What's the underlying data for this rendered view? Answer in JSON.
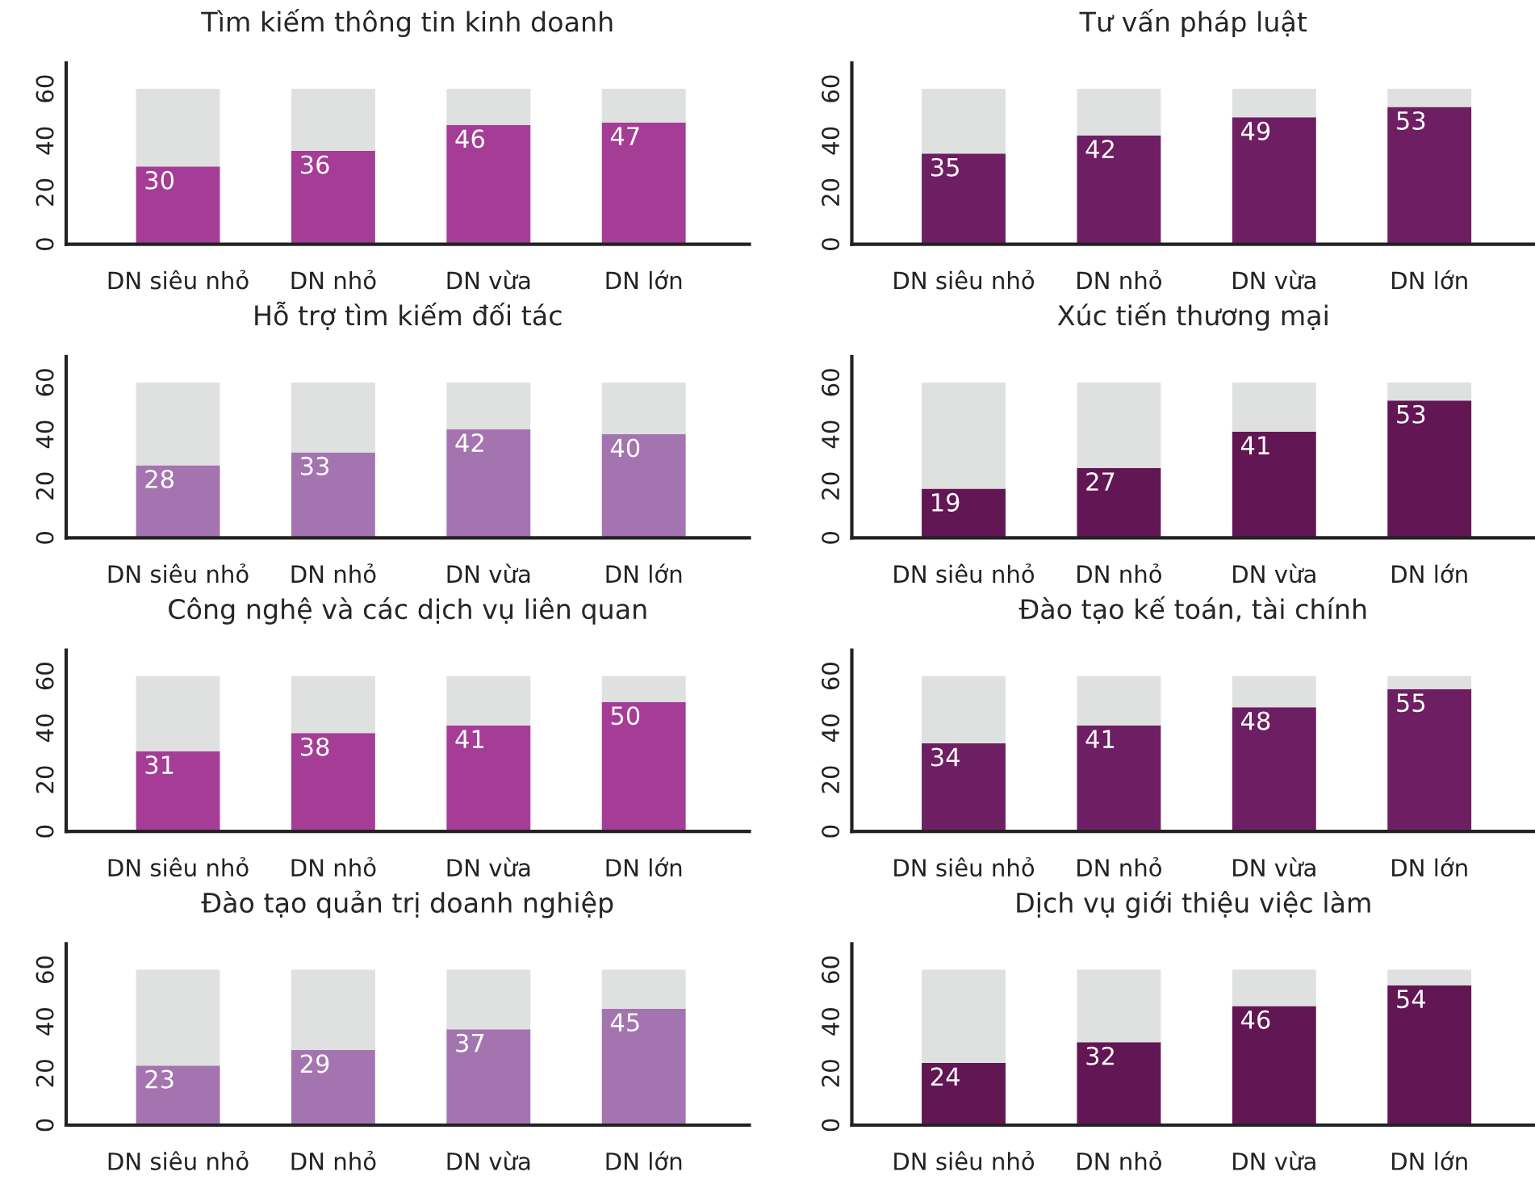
{
  "chart_data": [
    {
      "type": "bar",
      "title": "Tìm kiếm thông tin kinh doanh",
      "categories": [
        "DN siêu nhỏ",
        "DN nhỏ",
        "DN vừa",
        "DN lớn"
      ],
      "stacked": true,
      "ylim": [
        0,
        70
      ],
      "yticks": [
        0,
        20,
        40,
        60
      ],
      "grid": false,
      "legend": false,
      "series": [
        {
          "color": "#a53c96",
          "values": [
            30,
            36,
            46,
            47
          ],
          "value_labels": [
            "30",
            "36",
            "46",
            "47"
          ]
        },
        {
          "color": "#dfe0e0",
          "values": [
            30,
            24,
            14,
            13
          ]
        }
      ]
    },
    {
      "type": "bar",
      "title": "Tư vấn pháp luật",
      "categories": [
        "DN siêu nhỏ",
        "DN nhỏ",
        "DN vừa",
        "DN lớn"
      ],
      "stacked": true,
      "ylim": [
        0,
        70
      ],
      "yticks": [
        0,
        20,
        40,
        60
      ],
      "grid": false,
      "legend": false,
      "series": [
        {
          "color": "#6e1e62",
          "values": [
            35,
            42,
            49,
            53
          ],
          "value_labels": [
            "35",
            "42",
            "49",
            "53"
          ]
        },
        {
          "color": "#dfe0e0",
          "values": [
            25,
            18,
            11,
            7
          ]
        }
      ]
    },
    {
      "type": "bar",
      "title": "Hỗ trợ tìm kiếm đối tác",
      "categories": [
        "DN siêu nhỏ",
        "DN nhỏ",
        "DN vừa",
        "DN lớn"
      ],
      "stacked": true,
      "ylim": [
        0,
        70
      ],
      "yticks": [
        0,
        20,
        40,
        60
      ],
      "grid": false,
      "legend": false,
      "series": [
        {
          "color": "#a474b0",
          "values": [
            28,
            33,
            42,
            40
          ],
          "value_labels": [
            "28",
            "33",
            "42",
            "40"
          ]
        },
        {
          "color": "#dfe0e0",
          "values": [
            32,
            27,
            18,
            20
          ]
        }
      ]
    },
    {
      "type": "bar",
      "title": "Xúc tiến thương mại",
      "categories": [
        "DN siêu nhỏ",
        "DN nhỏ",
        "DN vừa",
        "DN lớn"
      ],
      "stacked": true,
      "ylim": [
        0,
        70
      ],
      "yticks": [
        0,
        20,
        40,
        60
      ],
      "grid": false,
      "legend": false,
      "series": [
        {
          "color": "#621654",
          "values": [
            19,
            27,
            41,
            53
          ],
          "value_labels": [
            "19",
            "27",
            "41",
            "53"
          ]
        },
        {
          "color": "#dfe0e0",
          "values": [
            41,
            33,
            19,
            7
          ]
        }
      ]
    },
    {
      "type": "bar",
      "title": "Công nghệ và các dịch vụ liên quan",
      "categories": [
        "DN siêu nhỏ",
        "DN nhỏ",
        "DN vừa",
        "DN lớn"
      ],
      "stacked": true,
      "ylim": [
        0,
        70
      ],
      "yticks": [
        0,
        20,
        40,
        60
      ],
      "grid": false,
      "legend": false,
      "series": [
        {
          "color": "#a53c96",
          "values": [
            31,
            38,
            41,
            50
          ],
          "value_labels": [
            "31",
            "38",
            "41",
            "50"
          ]
        },
        {
          "color": "#dfe0e0",
          "values": [
            29,
            22,
            19,
            10
          ]
        }
      ]
    },
    {
      "type": "bar",
      "title": "Đào tạo kế toán, tài chính",
      "categories": [
        "DN siêu nhỏ",
        "DN nhỏ",
        "DN vừa",
        "DN lớn"
      ],
      "stacked": true,
      "ylim": [
        0,
        70
      ],
      "yticks": [
        0,
        20,
        40,
        60
      ],
      "grid": false,
      "legend": false,
      "series": [
        {
          "color": "#6e1e62",
          "values": [
            34,
            41,
            48,
            55
          ],
          "value_labels": [
            "34",
            "41",
            "48",
            "55"
          ]
        },
        {
          "color": "#dfe0e0",
          "values": [
            26,
            19,
            12,
            5
          ]
        }
      ]
    },
    {
      "type": "bar",
      "title": "Đào tạo quản trị doanh nghiệp",
      "categories": [
        "DN siêu nhỏ",
        "DN nhỏ",
        "DN vừa",
        "DN lớn"
      ],
      "stacked": true,
      "ylim": [
        0,
        70
      ],
      "yticks": [
        0,
        20,
        40,
        60
      ],
      "grid": false,
      "legend": false,
      "series": [
        {
          "color": "#a474b0",
          "values": [
            23,
            29,
            37,
            45
          ],
          "value_labels": [
            "23",
            "29",
            "37",
            "45"
          ]
        },
        {
          "color": "#dfe0e0",
          "values": [
            37,
            31,
            23,
            15
          ]
        }
      ]
    },
    {
      "type": "bar",
      "title": "Dịch vụ giới thiệu việc làm",
      "categories": [
        "DN siêu nhỏ",
        "DN nhỏ",
        "DN vừa",
        "DN lớn"
      ],
      "stacked": true,
      "ylim": [
        0,
        70
      ],
      "yticks": [
        0,
        20,
        40,
        60
      ],
      "grid": false,
      "legend": false,
      "series": [
        {
          "color": "#621654",
          "values": [
            24,
            32,
            46,
            54
          ],
          "value_labels": [
            "24",
            "32",
            "46",
            "54"
          ]
        },
        {
          "color": "#dfe0e0",
          "values": [
            36,
            28,
            14,
            6
          ]
        }
      ]
    }
  ]
}
